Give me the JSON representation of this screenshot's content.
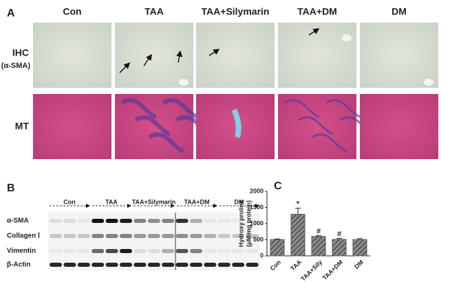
{
  "panel_a": {
    "label": "A",
    "columns": [
      "Con",
      "TAA",
      "TAA+Silymarin",
      "TAA+DM",
      "DM"
    ],
    "rows": [
      [
        "IHC",
        "(α-SMA)"
      ],
      [
        "MT"
      ]
    ]
  },
  "panel_b": {
    "label": "B",
    "groups": [
      "Con",
      "TAA",
      "TAA+Silymarin",
      "TAA+DM",
      "DM"
    ],
    "rows": [
      "α-SMA",
      "Collagen Ⅰ",
      "Vimentin",
      "β-Actin"
    ]
  },
  "chart_data": {
    "type": "bar",
    "label": "C",
    "ylabel": [
      "Hydroxy proline",
      "(μM/mg protein)"
    ],
    "categories": [
      "Con",
      "TAA",
      "TAA+Sily",
      "TAA+DM",
      "DM"
    ],
    "values": [
      505,
      1290,
      600,
      510,
      505
    ],
    "errors": [
      20,
      190,
      25,
      30,
      30
    ],
    "markers": [
      null,
      "*",
      "#",
      "#",
      null
    ],
    "ylim": [
      0,
      2000
    ],
    "yticks": [
      0,
      500,
      1000,
      1500,
      2000
    ],
    "color": "#555555"
  }
}
